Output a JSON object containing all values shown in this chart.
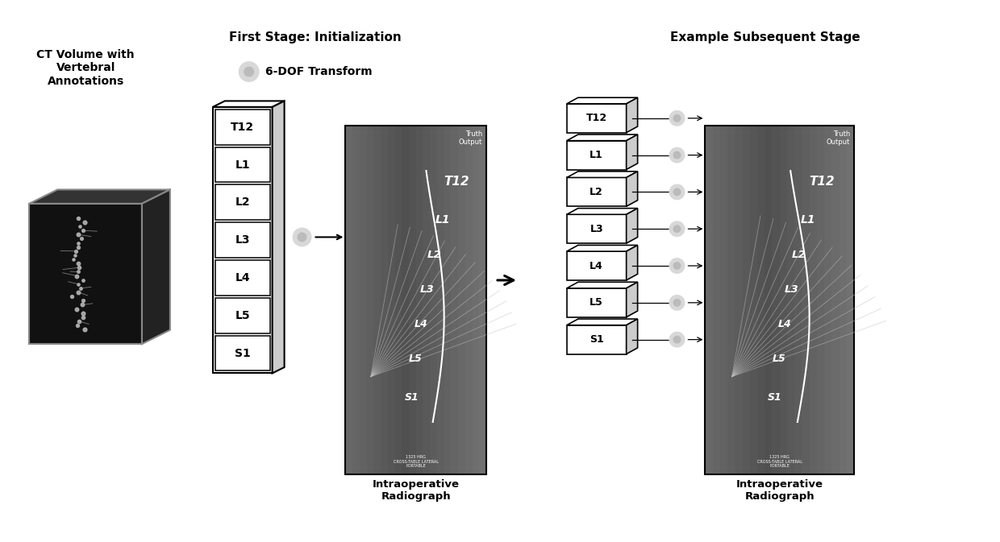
{
  "bg_color": "#ffffff",
  "labels": [
    "T12",
    "L1",
    "L2",
    "L3",
    "L4",
    "L5",
    "S1"
  ],
  "ct_title": "CT Volume with\nVertebral\nAnnotations",
  "stage1_title": "First Stage: Initialization",
  "stage2_title": "Example Subsequent Stage",
  "dof_label": "6-DOF Transform",
  "radio_label": "Intraoperative\nRadiograph",
  "xray_bg": "#7a7a7a",
  "xray_mid": "#909090",
  "xray_light": "#aaaaaa",
  "cube_front": "#111111",
  "cube_top": "#333333",
  "cube_side": "#222222",
  "cube_edge": "#888888",
  "box3d_side": "#cccccc",
  "circle_fill": "#d8d8d8",
  "circle_edge": "#aaaaaa"
}
